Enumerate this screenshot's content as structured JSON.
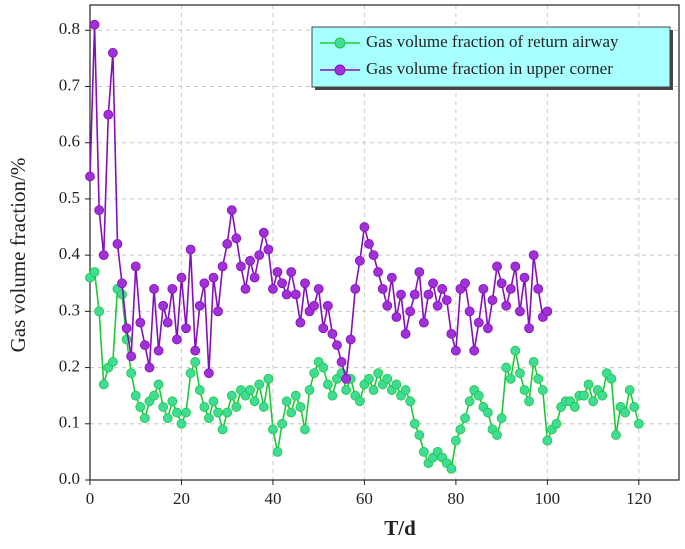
{
  "chart_data": {
    "type": "line",
    "xlabel": "T/d",
    "ylabel": "Gas volume fraction/%",
    "x": [
      0,
      1,
      2,
      3,
      4,
      5,
      6,
      7,
      8,
      9,
      10,
      11,
      12,
      13,
      14,
      15,
      16,
      17,
      18,
      19,
      20,
      21,
      22,
      23,
      24,
      25,
      26,
      27,
      28,
      29,
      30,
      31,
      32,
      33,
      34,
      35,
      36,
      37,
      38,
      39,
      40,
      41,
      42,
      43,
      44,
      45,
      46,
      47,
      48,
      49,
      50,
      51,
      52,
      53,
      54,
      55,
      56,
      57,
      58,
      59,
      60,
      61,
      62,
      63,
      64,
      65,
      66,
      67,
      68,
      69,
      70,
      71,
      72,
      73,
      74,
      75,
      76,
      77,
      78,
      79,
      80,
      81,
      82,
      83,
      84,
      85,
      86,
      87,
      88,
      89,
      90,
      91,
      92,
      93,
      94,
      95,
      96,
      97,
      98,
      99,
      100,
      101,
      102,
      103,
      104,
      105,
      106,
      107,
      108,
      109,
      110,
      111,
      112,
      113,
      114,
      115,
      116,
      117,
      118,
      119,
      120
    ],
    "series": [
      {
        "name": "Gas volume fraction of return airway",
        "color": "#1fc83a",
        "marker_color": "#3fdc98",
        "values": [
          0.36,
          0.37,
          0.3,
          0.17,
          0.2,
          0.21,
          0.34,
          0.33,
          0.25,
          0.19,
          0.15,
          0.13,
          0.11,
          0.14,
          0.15,
          0.17,
          0.13,
          0.11,
          0.14,
          0.12,
          0.1,
          0.12,
          0.19,
          0.21,
          0.16,
          0.13,
          0.11,
          0.14,
          0.12,
          0.09,
          0.12,
          0.15,
          0.13,
          0.16,
          0.15,
          0.16,
          0.14,
          0.17,
          0.13,
          0.18,
          0.09,
          0.05,
          0.1,
          0.14,
          0.12,
          0.15,
          0.13,
          0.09,
          0.16,
          0.19,
          0.21,
          0.2,
          0.17,
          0.15,
          0.18,
          0.19,
          0.16,
          0.18,
          0.15,
          0.14,
          0.17,
          0.18,
          0.16,
          0.19,
          0.17,
          0.18,
          0.16,
          0.17,
          0.15,
          0.16,
          0.14,
          0.1,
          0.08,
          0.05,
          0.03,
          0.04,
          0.05,
          0.04,
          0.03,
          0.02,
          0.07,
          0.09,
          0.11,
          0.14,
          0.16,
          0.15,
          0.13,
          0.12,
          0.09,
          0.08,
          0.11,
          0.2,
          0.18,
          0.23,
          0.19,
          0.16,
          0.14,
          0.21,
          0.18,
          0.16,
          0.07,
          0.09,
          0.1,
          0.13,
          0.14,
          0.14,
          0.13,
          0.15,
          0.15,
          0.17,
          0.14,
          0.16,
          0.15,
          0.19,
          0.18,
          0.08,
          0.13,
          0.12,
          0.16,
          0.13,
          0.1
        ]
      },
      {
        "name": "Gas volume fraction in upper corner",
        "color": "#8410b8",
        "marker_color": "#a030d8",
        "values": [
          0.54,
          0.81,
          0.48,
          0.4,
          0.65,
          0.76,
          0.42,
          0.35,
          0.27,
          0.22,
          0.38,
          0.28,
          0.24,
          0.2,
          0.34,
          0.23,
          0.31,
          0.28,
          0.34,
          0.25,
          0.36,
          0.27,
          0.41,
          0.23,
          0.31,
          0.35,
          0.19,
          0.36,
          0.3,
          0.38,
          0.42,
          0.48,
          0.43,
          0.38,
          0.34,
          0.39,
          0.36,
          0.4,
          0.44,
          0.41,
          0.34,
          0.37,
          0.35,
          0.33,
          0.37,
          0.33,
          0.28,
          0.35,
          0.3,
          0.31,
          0.34,
          0.27,
          0.31,
          0.26,
          0.24,
          0.21,
          0.18,
          0.25,
          0.34,
          0.39,
          0.45,
          0.42,
          0.4,
          0.37,
          0.34,
          0.31,
          0.36,
          0.29,
          0.33,
          0.26,
          0.3,
          0.33,
          0.37,
          0.28,
          0.33,
          0.35,
          0.31,
          0.34,
          0.32,
          0.26,
          0.23,
          0.34,
          0.35,
          0.3,
          0.23,
          0.28,
          0.34,
          0.27,
          0.32,
          0.38,
          0.35,
          0.31,
          0.34,
          0.38,
          0.3,
          0.36,
          0.27,
          0.4,
          0.34,
          0.29,
          0.3,
          null,
          null,
          null,
          null,
          null,
          null,
          null,
          null,
          null,
          null,
          null,
          null,
          null,
          null,
          null,
          null,
          null,
          null,
          null,
          null
        ]
      }
    ],
    "xlim": [
      0,
      129
    ],
    "ylim": [
      0,
      0.845
    ],
    "xticks": [
      0,
      20,
      40,
      60,
      80,
      100,
      120
    ],
    "yticks": [
      {
        "value": 0,
        "label": "0.0"
      },
      0.1,
      0.2,
      0.3,
      0.4,
      0.5,
      0.6,
      0.7,
      0.8
    ],
    "grid": true,
    "legend_loc": "upper right",
    "legend_color": "#a8ffff"
  }
}
